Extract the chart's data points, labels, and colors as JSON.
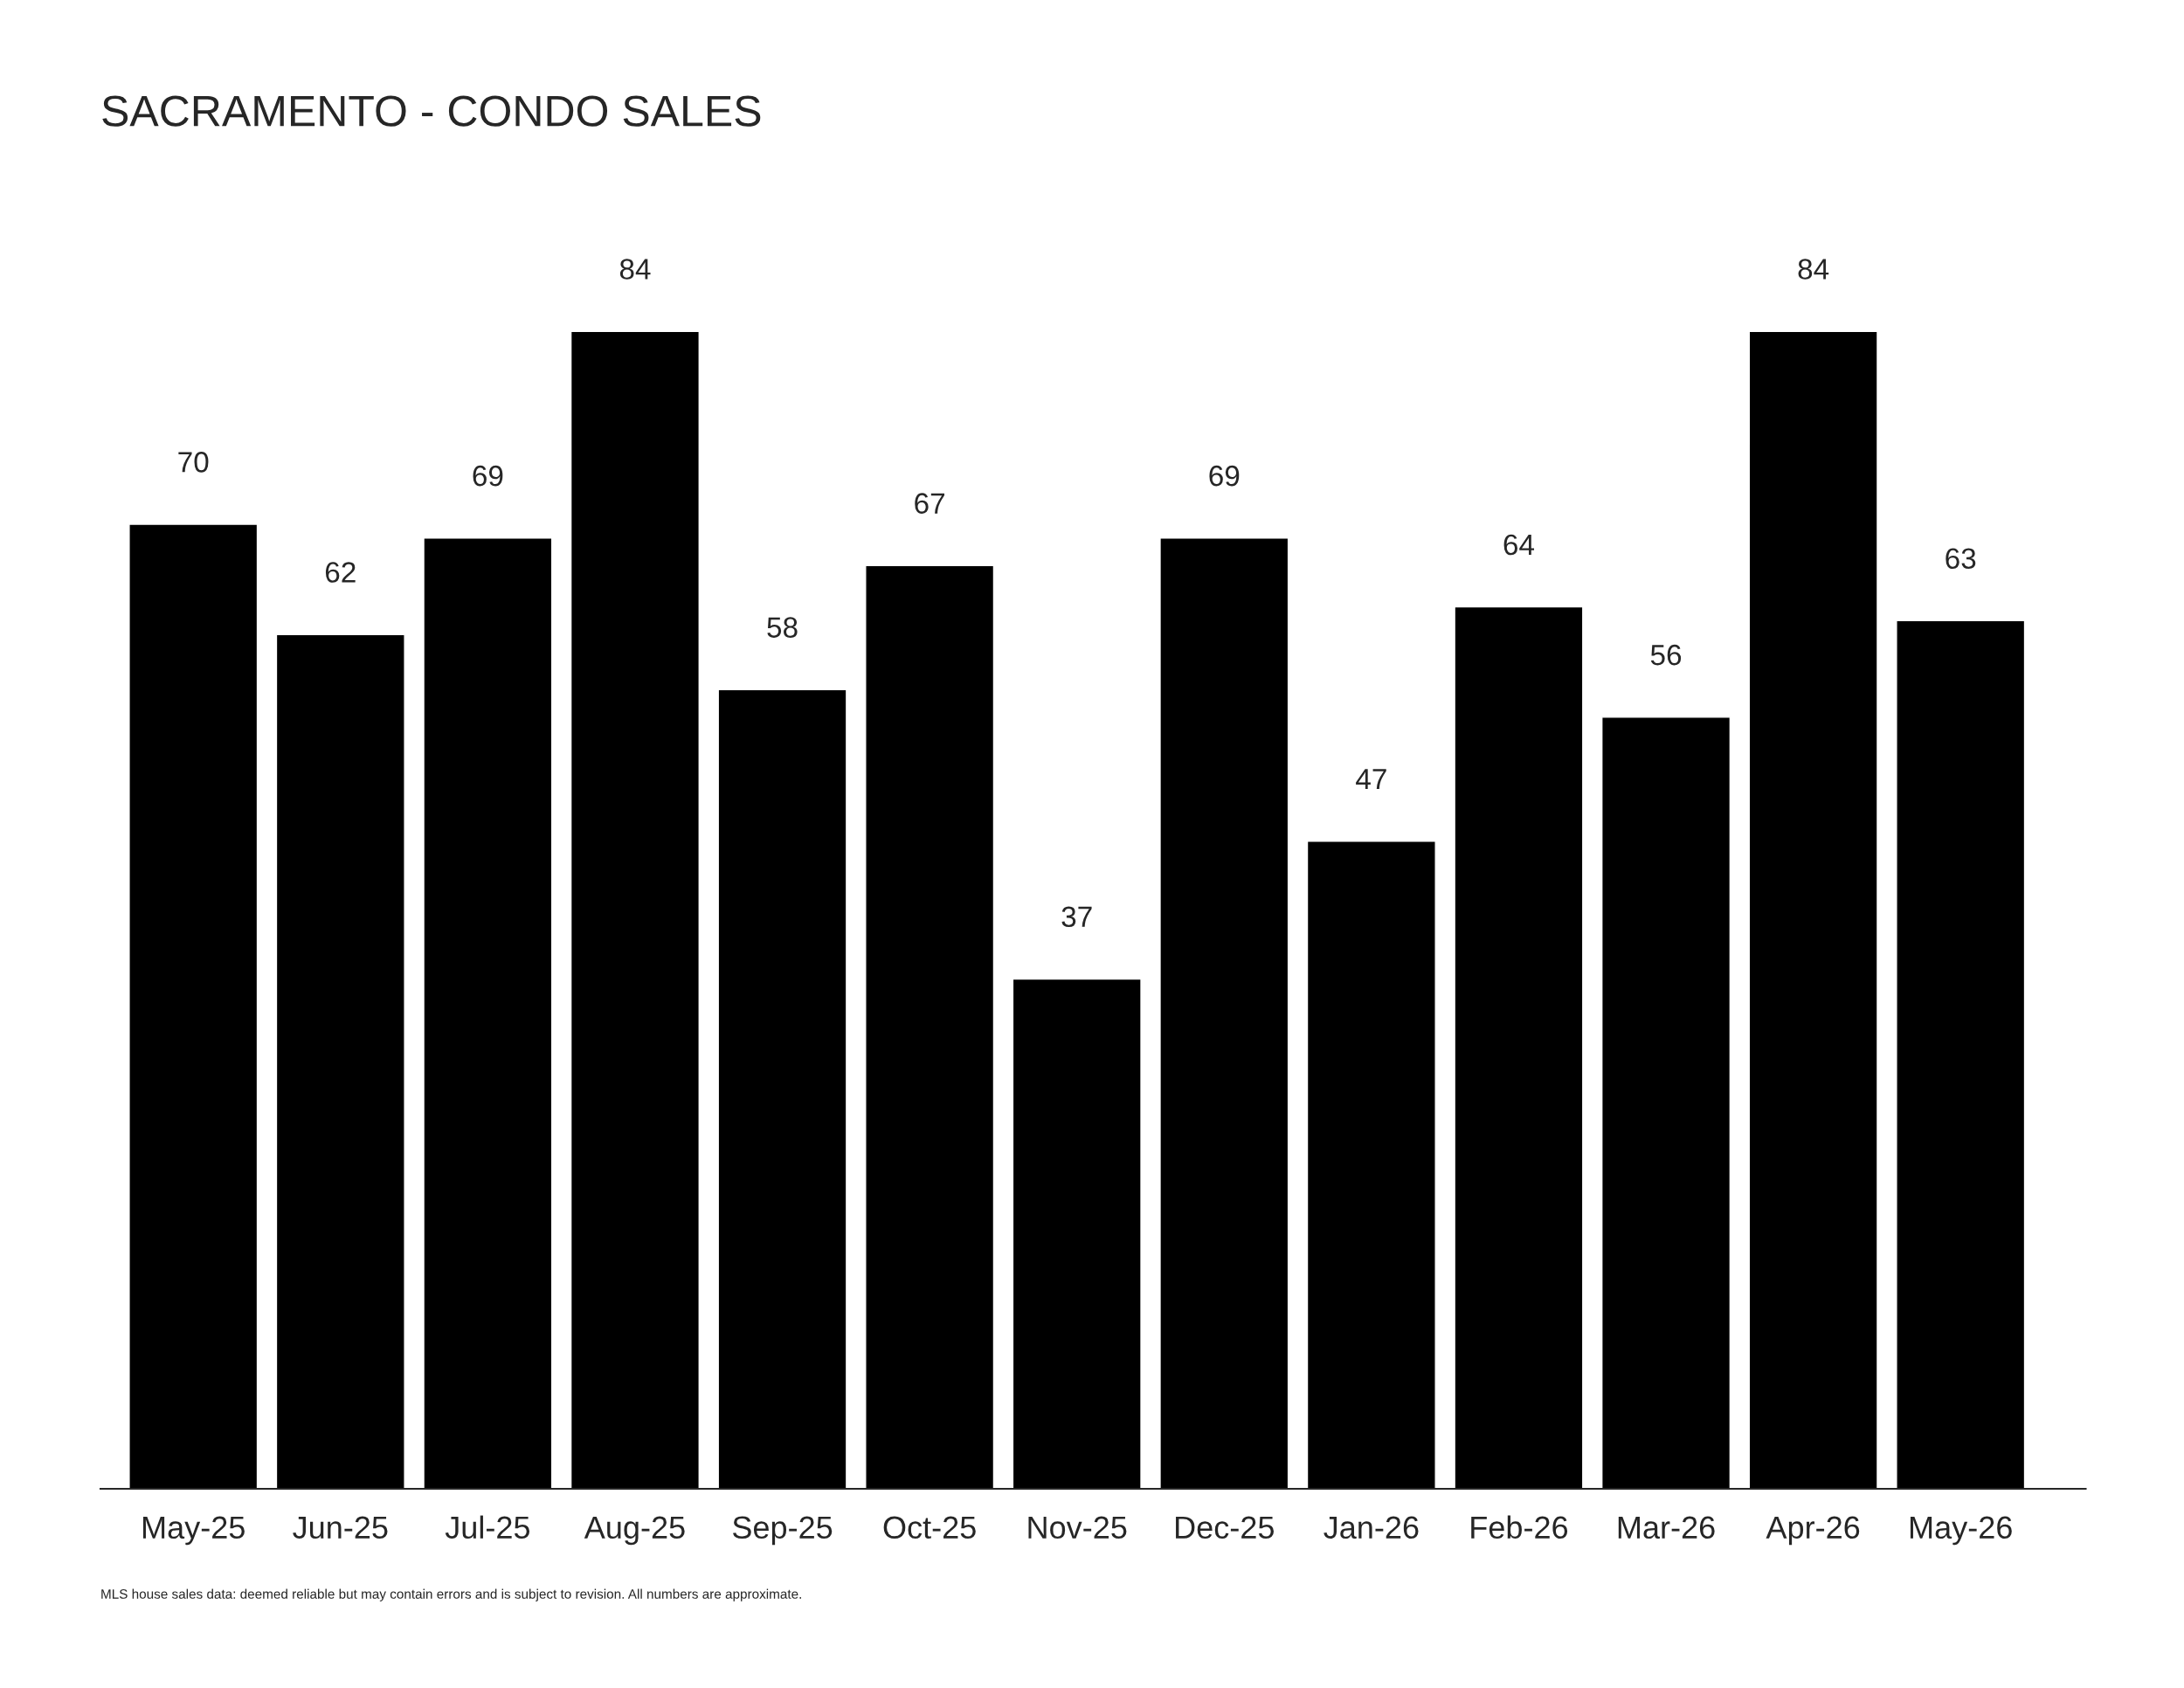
{
  "chart_data": {
    "type": "bar",
    "title": "SACRAMENTO - CONDO SALES",
    "categories": [
      "May-25",
      "Jun-25",
      "Jul-25",
      "Aug-25",
      "Sep-25",
      "Oct-25",
      "Nov-25",
      "Dec-25",
      "Jan-26",
      "Feb-26",
      "Mar-26",
      "Apr-26",
      "May-26"
    ],
    "values": [
      70,
      62,
      69,
      84,
      58,
      67,
      37,
      69,
      47,
      64,
      56,
      84,
      63
    ],
    "color": "#000000",
    "data_labels": true,
    "annotations": [
      "MLS house sales data: deemed reliable but may contain errors and is subject to revision. All numbers are approximate."
    ]
  }
}
